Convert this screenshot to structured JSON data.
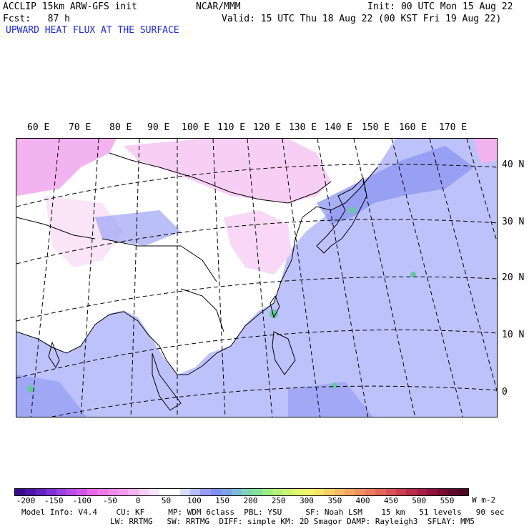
{
  "header": {
    "model": "ACCLIP 15km ARW-GFS init",
    "center": "NCAR/MMM",
    "init": "Init: 00 UTC Mon 15 Aug 22",
    "fcst": "Fcst:   87 h",
    "valid": "Valid: 15 UTC Thu 18 Aug 22 (00 KST Fri 19 Aug 22)",
    "field": "UPWARD HEAT FLUX AT THE SURFACE"
  },
  "map": {
    "lon_labels": [
      "60 E",
      "70 E",
      "80 E",
      "90 E",
      "100 E",
      "110 E",
      "120 E",
      "130 E",
      "140 E",
      "150 E",
      "160 E",
      "170 E"
    ],
    "lat_labels": [
      "40 N",
      "30 N",
      "20 N",
      "10 N",
      "0"
    ],
    "colors": {
      "negative": "#f3b3f0",
      "near_zero": "#ffffff",
      "low_positive": "#bdc2fb",
      "moderate": "#8c94f1",
      "high": "#67c7a0"
    }
  },
  "colorbar": {
    "ticks": [
      "-200",
      "-150",
      "-100",
      "-50",
      "0",
      "50",
      "100",
      "150",
      "200",
      "250",
      "300",
      "350",
      "400",
      "450",
      "500",
      "550"
    ],
    "unit": "W m-2",
    "colors": [
      "#3a0a8c",
      "#4d14a8",
      "#6420c2",
      "#7b2fd4",
      "#9a3fe0",
      "#b84ce6",
      "#d156e8",
      "#e868e6",
      "#f07ae6",
      "#f28ceb",
      "#f29cf0",
      "#f5b2f3",
      "#f8cdf7",
      "#fbe3fa",
      "#ffffff",
      "#ffffff",
      "#d9ddfd",
      "#b7befb",
      "#959ff5",
      "#7f8ef0",
      "#7aa3ea",
      "#7cbcd6",
      "#7fd3b7",
      "#86e29a",
      "#9cec85",
      "#b6f279",
      "#cdf574",
      "#e2f771",
      "#f2f56e",
      "#f7e46a",
      "#f8d068",
      "#f6bb66",
      "#f3a663",
      "#ef9160",
      "#ea7b5e",
      "#e3665b",
      "#d95057",
      "#cc3c52",
      "#bb2b4c",
      "#a61d45",
      "#8f133c",
      "#780c33",
      "#62082b",
      "#4f0522"
    ]
  },
  "footer": {
    "line1": "Model Info: V4.4    CU: KF     MP: WDM 6class  PBL: YSU     SF: Noah LSM    15 km   51 levels   90 sec",
    "line2": "LW: RRTMG   SW: RRTMG  DIFF: simple KM: 2D Smagor DAMP: Rayleigh3  SFLAY: MM5"
  }
}
